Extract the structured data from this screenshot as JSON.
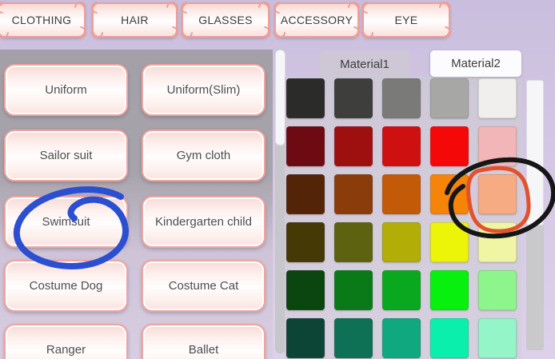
{
  "header_tabs": [
    {
      "label": "CLOTHING",
      "active": true
    },
    {
      "label": "HAIR",
      "active": false
    },
    {
      "label": "GLASSES",
      "active": false
    },
    {
      "label": "ACCESSORY",
      "active": false
    },
    {
      "label": "EYE",
      "active": false
    }
  ],
  "clothing_list": {
    "items": [
      "Uniform",
      "Uniform(Slim)",
      "Sailor suit",
      "Gym cloth",
      "Swimsuit",
      "Kindergarten child",
      "Costume Dog",
      "Costume Cat",
      "Ranger",
      "Ballet"
    ],
    "circled_item": "Swimsuit"
  },
  "material_tabs": [
    {
      "label": "Material1",
      "active": false
    },
    {
      "label": "Material2",
      "active": true
    }
  ],
  "palette": {
    "rows": [
      [
        "#2b2b29",
        "#3e3e3c",
        "#7a7a78",
        "#a7a7a5",
        "#f0efed"
      ],
      [
        "#6e0a12",
        "#9e1010",
        "#ce1010",
        "#f50808",
        "#f2b5b8"
      ],
      [
        "#542408",
        "#8a3c0a",
        "#c25a08",
        "#f58408",
        "#f7ab82"
      ],
      [
        "#453a05",
        "#5d6210",
        "#b3ad08",
        "#ecf408",
        "#f0f5a4"
      ],
      [
        "#0b4510",
        "#0a7a18",
        "#0aa81e",
        "#08f00d",
        "#8df58c"
      ],
      [
        "#0c4536",
        "#0e7054",
        "#10a87e",
        "#0af0ac",
        "#94f5c8"
      ]
    ],
    "circled_swatch": {
      "row": 3,
      "col": 5,
      "color": "#f7ab82"
    }
  },
  "annotations": {
    "swimsuit_circle": {
      "shape": "hand-drawn lasso ellipse",
      "color": "#2b4fd1",
      "target": "Swimsuit"
    },
    "swatch_circle_outer": {
      "shape": "hand-drawn ellipse",
      "color": "#161616",
      "target": "peach swatch"
    },
    "swatch_circle_inner": {
      "shape": "hand-drawn rounded square",
      "color": "#e2512c",
      "target": "peach swatch"
    }
  },
  "colors": {
    "tab_border": "#ef9e98",
    "button_border": "#f1a39d",
    "panel_gray": "#a5a2aa",
    "page_lavender": "#d3c8e5",
    "material_active_bg": "#fcfbfd",
    "material_inactive_bg": "#cdc8d5"
  }
}
